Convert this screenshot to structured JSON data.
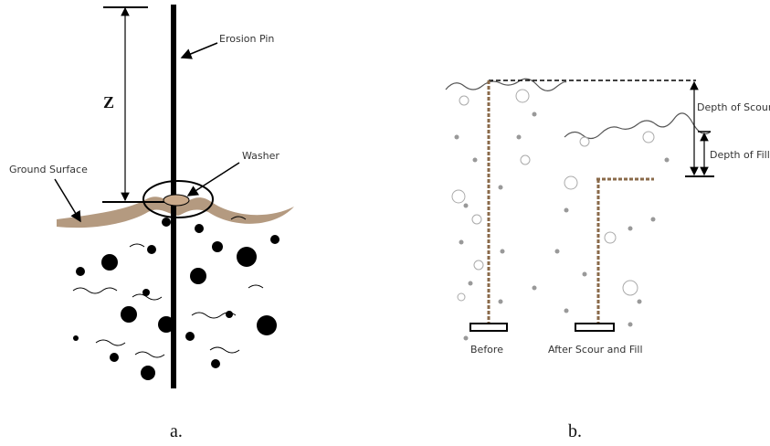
{
  "panel_a": {
    "pin_label": "Erosion Pin",
    "z_label": "Z",
    "washer_label": "Washer",
    "ground_label": "Ground Surface",
    "caption": "a."
  },
  "panel_b": {
    "scour_label": "Depth of Scour",
    "fill_label": "Depth of Fill",
    "before_label": "Before",
    "after_label": "After Scour and Fill",
    "caption": "b."
  }
}
